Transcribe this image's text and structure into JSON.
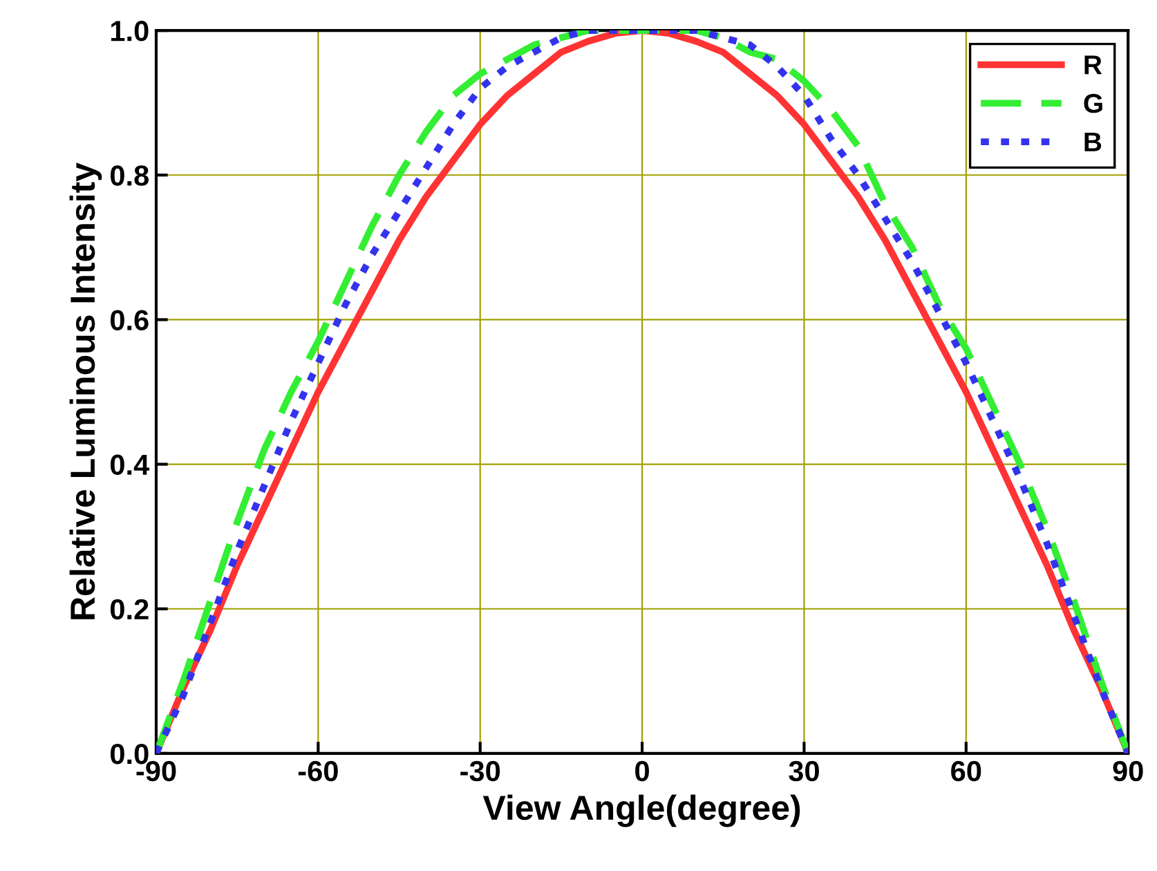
{
  "chart_data": {
    "type": "line",
    "xlabel": "View Angle(degree)",
    "ylabel": "Relative Luminous Intensity",
    "x": [
      -90,
      -85,
      -80,
      -75,
      -70,
      -65,
      -60,
      -55,
      -50,
      -45,
      -40,
      -35,
      -30,
      -25,
      -20,
      -15,
      -10,
      -5,
      0,
      5,
      10,
      15,
      20,
      25,
      30,
      35,
      40,
      45,
      50,
      55,
      60,
      65,
      70,
      75,
      80,
      85,
      90
    ],
    "series": [
      {
        "name": "R",
        "color": "#ff3333",
        "line_style": "solid",
        "values": [
          0,
          0.09,
          0.17,
          0.26,
          0.34,
          0.42,
          0.5,
          0.57,
          0.64,
          0.71,
          0.77,
          0.82,
          0.87,
          0.91,
          0.94,
          0.97,
          0.985,
          0.996,
          1,
          0.996,
          0.985,
          0.97,
          0.94,
          0.91,
          0.87,
          0.82,
          0.77,
          0.71,
          0.64,
          0.57,
          0.5,
          0.42,
          0.34,
          0.26,
          0.17,
          0.09,
          0
        ]
      },
      {
        "name": "G",
        "color": "#33ee33",
        "line_style": "dashed",
        "values": [
          0,
          0.1,
          0.21,
          0.32,
          0.42,
          0.5,
          0.57,
          0.65,
          0.73,
          0.8,
          0.86,
          0.91,
          0.94,
          0.96,
          0.98,
          0.99,
          1,
          1,
          1,
          1,
          1,
          0.99,
          0.97,
          0.96,
          0.93,
          0.89,
          0.84,
          0.76,
          0.7,
          0.62,
          0.56,
          0.48,
          0.4,
          0.31,
          0.21,
          0.1,
          0
        ]
      },
      {
        "name": "B",
        "color": "#3333ee",
        "line_style": "dotted",
        "values": [
          0,
          0.08,
          0.18,
          0.28,
          0.37,
          0.46,
          0.54,
          0.62,
          0.69,
          0.75,
          0.81,
          0.87,
          0.92,
          0.95,
          0.97,
          0.99,
          1,
          1,
          1,
          1,
          1,
          0.99,
          0.98,
          0.95,
          0.91,
          0.85,
          0.8,
          0.74,
          0.68,
          0.61,
          0.54,
          0.46,
          0.38,
          0.29,
          0.19,
          0.09,
          0
        ]
      }
    ],
    "xlim": [
      -90,
      90
    ],
    "xticks": [
      -90,
      -60,
      -30,
      0,
      30,
      60,
      90
    ],
    "ylim": [
      0,
      1.0
    ],
    "yticks": [
      {
        "value": 0,
        "label": "0.0"
      },
      {
        "value": 0.2,
        "label": "0.2"
      },
      {
        "value": 0.4,
        "label": "0.4"
      },
      {
        "value": 0.6,
        "label": "0.6"
      },
      {
        "value": 0.8,
        "label": "0.8"
      },
      {
        "value": 1.0,
        "label": "1.0"
      }
    ],
    "grid": true,
    "legend": "top right"
  }
}
